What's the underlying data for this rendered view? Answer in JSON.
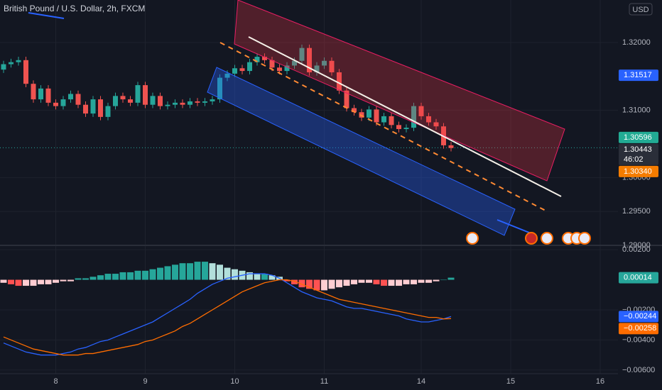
{
  "chart_data": [
    {
      "type": "candlestick",
      "title": "British Pound / U.S. Dollar, 2h, FXCM",
      "currency": "USD",
      "categories": [
        null,
        null,
        null,
        null,
        null,
        null,
        null,
        "8",
        null,
        null,
        null,
        null,
        null,
        null,
        null,
        null,
        null,
        null,
        null,
        "9",
        null,
        null,
        null,
        null,
        null,
        null,
        null,
        null,
        null,
        null,
        null,
        "10",
        null,
        null,
        null,
        null,
        null,
        null,
        null,
        null,
        null,
        null,
        null,
        "11",
        null,
        null,
        null,
        null,
        null,
        null,
        null,
        null,
        null,
        null,
        null,
        null,
        "14",
        null,
        null,
        null,
        null,
        null,
        null,
        null,
        null,
        null,
        null,
        null,
        "15",
        null,
        null,
        null,
        null,
        null,
        null,
        null,
        null,
        null,
        null,
        null,
        "16"
      ],
      "open": [
        1.316,
        1.3168,
        1.3171,
        1.3174,
        1.3139,
        1.3116,
        1.3132,
        1.3111,
        1.3106,
        1.3116,
        1.3124,
        1.3108,
        1.3095,
        1.3116,
        1.309,
        1.3106,
        1.3121,
        1.3116,
        1.3111,
        1.3137,
        1.3108,
        1.3121,
        1.3106,
        1.3108,
        1.3111,
        1.3108,
        1.3113,
        1.3111,
        1.3113,
        1.3116,
        1.3148,
        1.3154,
        1.3162,
        1.3158,
        1.3171,
        1.3179,
        1.3174,
        1.3163,
        1.3158,
        1.3166,
        1.3173,
        1.3192,
        1.3156,
        1.3166,
        1.3173,
        1.3156,
        1.3129,
        1.3103,
        1.3097,
        1.3089,
        1.3101,
        1.3082,
        1.3091,
        1.3078,
        1.3072,
        1.3074,
        1.3106,
        1.3091,
        1.3082,
        1.3076,
        1.3048,
        null,
        null,
        null,
        null,
        null,
        null,
        null,
        null,
        null,
        null,
        null,
        null,
        null,
        null,
        null,
        null,
        null,
        null,
        null,
        null
      ],
      "high": [
        1.3173,
        1.3176,
        1.3179,
        1.3179,
        1.3144,
        1.3137,
        1.3137,
        1.3116,
        1.3121,
        1.3129,
        1.3129,
        1.3113,
        1.3121,
        1.3121,
        1.3111,
        1.3126,
        1.3126,
        1.3121,
        1.3142,
        1.3142,
        1.3126,
        1.3126,
        1.3113,
        1.3116,
        1.3116,
        1.3118,
        1.3118,
        1.3118,
        1.3121,
        1.3153,
        1.3159,
        1.3167,
        1.3167,
        1.3176,
        1.3184,
        1.3184,
        1.3179,
        1.3168,
        1.3171,
        1.3178,
        1.3197,
        1.3197,
        1.3171,
        1.3178,
        1.3178,
        1.3161,
        1.3134,
        1.3108,
        1.3102,
        1.3106,
        1.3106,
        1.3096,
        1.3096,
        1.3083,
        1.3079,
        1.3111,
        1.3111,
        1.3096,
        1.3087,
        1.3081,
        1.3053,
        null,
        null,
        null,
        null,
        null,
        null,
        null,
        null,
        null,
        null,
        null,
        null,
        null,
        null,
        null,
        null,
        null,
        null,
        null,
        null
      ],
      "low": [
        1.3155,
        1.3163,
        1.3166,
        1.3134,
        1.3111,
        1.3111,
        1.3106,
        1.3101,
        1.3101,
        1.3111,
        1.3103,
        1.309,
        1.309,
        1.3085,
        1.3085,
        1.3101,
        1.3111,
        1.3106,
        1.3106,
        1.3103,
        1.3103,
        1.3101,
        1.3101,
        1.3103,
        1.3103,
        1.3103,
        1.3106,
        1.3106,
        1.3108,
        1.3111,
        1.3143,
        1.3149,
        1.3153,
        1.3153,
        1.3166,
        1.3169,
        1.3158,
        1.3153,
        1.3153,
        1.3161,
        1.3168,
        1.3151,
        1.3151,
        1.3161,
        1.3151,
        1.3124,
        1.3098,
        1.3092,
        1.3084,
        1.3084,
        1.3077,
        1.3077,
        1.3073,
        1.3067,
        1.3067,
        1.3069,
        1.3086,
        1.3077,
        1.3071,
        1.3043,
        1.3039,
        null,
        null,
        null,
        null,
        null,
        null,
        null,
        null,
        null,
        null,
        null,
        null,
        null,
        null,
        null,
        null,
        null,
        null,
        null,
        null
      ],
      "close": [
        1.3168,
        1.3171,
        1.3174,
        1.3139,
        1.3116,
        1.3132,
        1.3111,
        1.3106,
        1.3116,
        1.3124,
        1.3108,
        1.3095,
        1.3116,
        1.309,
        1.3106,
        1.3121,
        1.3116,
        1.3111,
        1.3137,
        1.3108,
        1.3121,
        1.3106,
        1.3108,
        1.3111,
        1.3108,
        1.3113,
        1.3111,
        1.3113,
        1.3116,
        1.3148,
        1.3154,
        1.3162,
        1.3158,
        1.3171,
        1.3179,
        1.3174,
        1.3163,
        1.3158,
        1.3166,
        1.3173,
        1.3192,
        1.3156,
        1.3166,
        1.3173,
        1.3156,
        1.3129,
        1.3103,
        1.3097,
        1.3089,
        1.3101,
        1.3082,
        1.3091,
        1.3078,
        1.3072,
        1.3074,
        1.3106,
        1.3091,
        1.3082,
        1.3076,
        1.3048,
        1.3044,
        null,
        null,
        null,
        null,
        null,
        null,
        null,
        null,
        null,
        null,
        null,
        null,
        null,
        null,
        null,
        null,
        null,
        null,
        null,
        null
      ],
      "up_color": "#26a69a",
      "down_color": "#ef5350",
      "ylim": [
        1.2901,
        1.3263
      ],
      "yticks": [
        {
          "value": 1.29,
          "label": "1.29000"
        },
        {
          "value": 1.295,
          "label": "1.29500"
        },
        {
          "value": 1.3,
          "label": "1.30000"
        },
        {
          "value": 1.31,
          "label": "1.31000"
        },
        {
          "value": 1.32,
          "label": "1.32000"
        }
      ],
      "grid": true,
      "badges": [
        {
          "value": 1.31517,
          "color": "#2962ff"
        },
        {
          "value": 1.30596,
          "color": "#22ab94"
        },
        {
          "value": 1.30443,
          "countdown": "46:02",
          "color": "#2a2e39"
        },
        {
          "value": 1.3034,
          "label": "1.30340",
          "color": "#f57c00"
        }
      ]
    },
    {
      "type": "macd",
      "histogram": {
        "colors": [
          "#26a69a",
          "#b2dfdb",
          "#ff5252",
          "#ffcdd2"
        ],
        "values": [
          -0.0002,
          -0.0003,
          -0.0004,
          -0.0004,
          -0.0004,
          -0.0003,
          -0.0003,
          -0.0002,
          -0.0001,
          -0.0001,
          0.0001,
          0.0001,
          0.0002,
          0.0003,
          0.0004,
          0.0004,
          0.0005,
          0.0005,
          0.0006,
          0.0006,
          0.0007,
          0.0008,
          0.0009,
          0.001,
          0.0011,
          0.0011,
          0.0012,
          0.0012,
          0.0011,
          0.001,
          0.0008,
          0.0007,
          0.0006,
          0.0005,
          0.0004,
          0.0004,
          0.0003,
          0.0002,
          -0.0001,
          -0.0003,
          -0.0005,
          -0.0006,
          -0.0007,
          -0.0007,
          -0.0006,
          -0.0005,
          -0.0004,
          -0.0003,
          -0.0002,
          -0.0002,
          -0.0003,
          -0.0004,
          -0.0004,
          -0.0004,
          -0.0003,
          -0.0003,
          -0.0002,
          -0.0002,
          -0.0001,
          0.0,
          0.00014,
          null,
          null,
          null,
          null,
          null,
          null,
          null,
          null,
          null,
          null,
          null,
          null,
          null,
          null,
          null,
          null,
          null,
          null,
          null,
          null
        ]
      },
      "lines": [
        {
          "color": "#2962ff",
          "values": [
            -0.0042,
            -0.0044,
            -0.0046,
            -0.0048,
            -0.0049,
            -0.005,
            -0.005,
            -0.005,
            -0.0049,
            -0.0048,
            -0.0046,
            -0.0045,
            -0.0043,
            -0.0041,
            -0.004,
            -0.0038,
            -0.0036,
            -0.0034,
            -0.0032,
            -0.003,
            -0.0028,
            -0.0025,
            -0.0022,
            -0.0019,
            -0.0016,
            -0.0013,
            -0.0009,
            -0.0006,
            -0.0003,
            -0.0001,
            0.0001,
            0.0002,
            0.0003,
            0.0004,
            0.0004,
            0.0004,
            0.0003,
            0.0001,
            -0.0002,
            -0.0005,
            -0.0008,
            -0.001,
            -0.0012,
            -0.0013,
            -0.0014,
            -0.0016,
            -0.0018,
            -0.0019,
            -0.0019,
            -0.002,
            -0.0021,
            -0.0022,
            -0.0023,
            -0.0024,
            -0.0026,
            -0.0027,
            -0.0028,
            -0.0028,
            -0.0027,
            -0.0026,
            -0.00244,
            null,
            null,
            null,
            null,
            null,
            null,
            null,
            null,
            null,
            null,
            null,
            null,
            null,
            null,
            null,
            null,
            null,
            null,
            null,
            null
          ]
        },
        {
          "color": "#ff6d00",
          "values": [
            -0.0038,
            -0.004,
            -0.0042,
            -0.0044,
            -0.0046,
            -0.0047,
            -0.0048,
            -0.0049,
            -0.005,
            -0.005,
            -0.005,
            -0.0049,
            -0.0049,
            -0.0048,
            -0.0047,
            -0.0046,
            -0.0045,
            -0.0044,
            -0.0043,
            -0.0041,
            -0.004,
            -0.0038,
            -0.0036,
            -0.0034,
            -0.0031,
            -0.0029,
            -0.0026,
            -0.0023,
            -0.002,
            -0.0017,
            -0.0014,
            -0.0011,
            -0.0008,
            -0.0006,
            -0.0004,
            -0.0002,
            -0.0001,
            0.0,
            0.0,
            -0.0001,
            -0.0003,
            -0.0005,
            -0.0007,
            -0.0009,
            -0.0011,
            -0.0013,
            -0.0014,
            -0.0015,
            -0.0016,
            -0.0017,
            -0.0018,
            -0.0019,
            -0.002,
            -0.0021,
            -0.0022,
            -0.0023,
            -0.0024,
            -0.0025,
            -0.0025,
            -0.0026,
            -0.00258,
            null,
            null,
            null,
            null,
            null,
            null,
            null,
            null,
            null,
            null,
            null,
            null,
            null,
            null,
            null,
            null,
            null,
            null,
            null,
            null
          ]
        }
      ],
      "ylim": [
        -0.00624,
        0.00224
      ],
      "yticks": [
        {
          "value": -0.006,
          "label": "−0.00600"
        },
        {
          "value": -0.004,
          "label": "−0.00400"
        },
        {
          "value": -0.002,
          "label": "−0.00200"
        },
        {
          "value": 0.002,
          "label": "0.00200"
        }
      ],
      "grid": true,
      "badges": [
        {
          "value": 0.00014,
          "color": "#26a69a"
        },
        {
          "value": -0.00244,
          "label": "−0.00244",
          "color": "#2962ff"
        },
        {
          "value": -0.00258,
          "label": "−0.00258",
          "color": "#ff6d00"
        }
      ]
    }
  ]
}
